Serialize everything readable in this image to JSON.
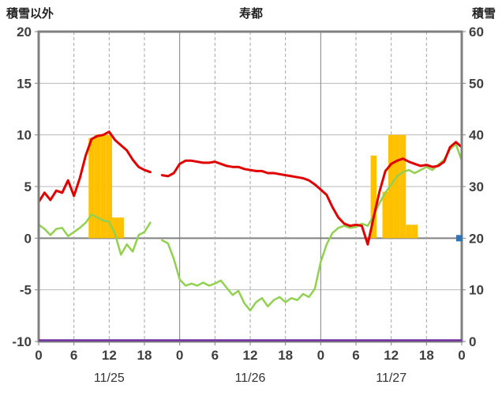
{
  "header": {
    "left_axis_title": "積雪以外",
    "title": "寿都",
    "right_axis_title": "積雪"
  },
  "colors": {
    "red_line": "#e00000",
    "green_line": "#92d050",
    "orange_bars": "#ffc000",
    "purple_baseline": "#7030a0",
    "blue_marker": "#2e75b6",
    "border": "#808080",
    "grid_minor": "#b8b8b8",
    "grid_dashed": "#a6a6a6",
    "grid_zero": "#808080",
    "tick_text": "#3f3f3f",
    "date_text": "#333333"
  },
  "chart_data": {
    "type": "line",
    "title": "寿都",
    "left_axis": {
      "label": "積雪以外",
      "min": -10,
      "max": 20,
      "ticks": [
        20,
        15,
        10,
        5,
        0,
        -5,
        -10
      ]
    },
    "right_axis": {
      "label": "積雪",
      "min": 0,
      "max": 60,
      "ticks": [
        60,
        50,
        40,
        30,
        20,
        10,
        0
      ]
    },
    "x_axis": {
      "unit": "hour",
      "start": 0,
      "end": 72,
      "tick_step": 6,
      "tick_labels": [
        "0",
        "6",
        "12",
        "18",
        "0",
        "6",
        "12",
        "18",
        "0",
        "6",
        "12",
        "18",
        "0"
      ],
      "date_labels": [
        "11/25",
        "11/26",
        "11/27"
      ],
      "day_boundaries": [
        24,
        48
      ]
    },
    "grid": {
      "horizontal": [
        15,
        10,
        5,
        0,
        -5
      ],
      "zero_line": 0,
      "vertical_dashed_every": 6
    },
    "series": [
      {
        "name": "red-line",
        "type": "line",
        "axis": "left",
        "color": "#e00000",
        "width": 3,
        "values": [
          3.5,
          4.4,
          3.7,
          4.6,
          4.4,
          5.6,
          4.1,
          5.8,
          8.0,
          9.6,
          9.9,
          10.0,
          10.3,
          9.5,
          9.0,
          8.5,
          7.6,
          6.9,
          6.6,
          6.4,
          null,
          6.1,
          6.0,
          6.3,
          7.2,
          7.5,
          7.5,
          7.4,
          7.3,
          7.3,
          7.4,
          7.2,
          7.0,
          6.9,
          6.9,
          6.7,
          6.6,
          6.5,
          6.5,
          6.3,
          6.3,
          6.2,
          6.1,
          6.0,
          5.9,
          5.8,
          5.6,
          5.2,
          4.7,
          4.2,
          3.0,
          2.0,
          1.4,
          1.2,
          1.3,
          1.2,
          -0.6,
          2.0,
          4.5,
          6.5,
          7.2,
          7.5,
          7.7,
          7.4,
          7.2,
          7.0,
          7.1,
          6.9,
          7.0,
          7.4,
          8.8,
          9.3,
          8.8
        ]
      },
      {
        "name": "green-line",
        "type": "line",
        "axis": "left",
        "color": "#92d050",
        "width": 2.5,
        "values": [
          1.3,
          0.9,
          0.3,
          0.9,
          1.0,
          0.2,
          0.6,
          1.0,
          1.5,
          2.3,
          2.0,
          1.7,
          1.6,
          0.4,
          -1.6,
          -0.6,
          -1.3,
          0.3,
          0.6,
          1.5,
          null,
          -0.2,
          -0.5,
          -2.0,
          -4.0,
          -4.6,
          -4.4,
          -4.6,
          -4.3,
          -4.6,
          -4.4,
          -4.1,
          -4.8,
          -5.5,
          -5.1,
          -6.3,
          -7.0,
          -6.2,
          -5.8,
          -6.6,
          -6.0,
          -5.7,
          -6.2,
          -5.8,
          -6.0,
          -5.4,
          -5.7,
          -4.9,
          -2.3,
          -0.6,
          0.5,
          1.0,
          1.2,
          1.0,
          1.1,
          1.4,
          1.2,
          2.2,
          3.4,
          4.4,
          5.2,
          6.0,
          6.4,
          6.6,
          6.3,
          6.6,
          6.9,
          6.6,
          7.1,
          7.6,
          8.6,
          9.1,
          7.5
        ]
      }
    ],
    "bars": {
      "name": "orange-bars",
      "axis": "left",
      "color": "#ffc000",
      "points": [
        {
          "hour": 9,
          "value": 9.7
        },
        {
          "hour": 10,
          "value": 10.0
        },
        {
          "hour": 11,
          "value": 10.0
        },
        {
          "hour": 12,
          "value": 10.0
        },
        {
          "hour": 13,
          "value": 2.0
        },
        {
          "hour": 14,
          "value": 2.0
        },
        {
          "hour": 57,
          "value": 8.0
        },
        {
          "hour": 59,
          "value": 4.5
        },
        {
          "hour": 60,
          "value": 10.0
        },
        {
          "hour": 61,
          "value": 10.0
        },
        {
          "hour": 62,
          "value": 10.0
        },
        {
          "hour": 63,
          "value": 1.3
        },
        {
          "hour": 64,
          "value": 1.3
        }
      ]
    },
    "baseline": {
      "name": "purple-baseline",
      "axis": "right",
      "value": 0,
      "color": "#7030a0"
    },
    "marker": {
      "name": "blue-marker",
      "hour": 72,
      "axis": "left",
      "value": 0,
      "color": "#2e75b6"
    }
  }
}
